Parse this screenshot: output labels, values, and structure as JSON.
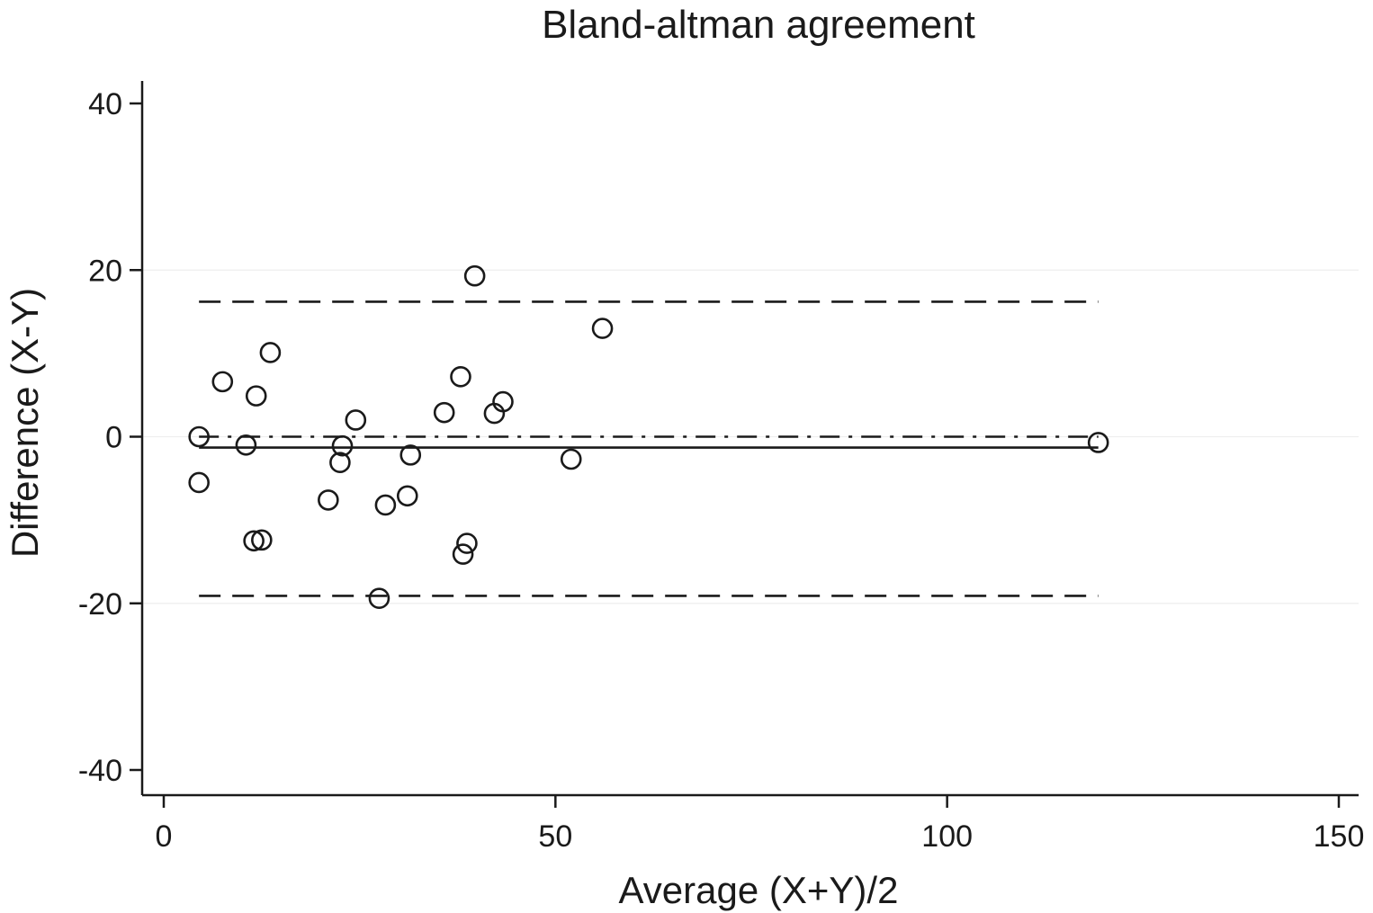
{
  "chart_data": {
    "type": "scatter",
    "title": "Bland-altman agreement",
    "xlabel": "Average (X+Y)/2",
    "ylabel": "Difference (X-Y)",
    "xlim": [
      0,
      150
    ],
    "ylim": [
      -40,
      40
    ],
    "xticks": [
      "0",
      "50",
      "100",
      "150"
    ],
    "yticks": [
      "40",
      "20",
      "0",
      "-20",
      "-40"
    ],
    "grid": true,
    "series": [
      {
        "marker": "hollow-circle",
        "points": [
          {
            "x": 4.5,
            "y": 0.0
          },
          {
            "x": 4.5,
            "y": -5.5
          },
          {
            "x": 7.5,
            "y": 6.6
          },
          {
            "x": 10.5,
            "y": -1.0
          },
          {
            "x": 11.8,
            "y": 4.9
          },
          {
            "x": 11.5,
            "y": -12.5
          },
          {
            "x": 12.5,
            "y": -12.4
          },
          {
            "x": 13.6,
            "y": 10.1
          },
          {
            "x": 21.0,
            "y": -7.6
          },
          {
            "x": 22.5,
            "y": -3.1
          },
          {
            "x": 22.8,
            "y": -1.1
          },
          {
            "x": 24.5,
            "y": 2.0
          },
          {
            "x": 27.5,
            "y": -19.4
          },
          {
            "x": 28.3,
            "y": -8.2
          },
          {
            "x": 31.1,
            "y": -7.1
          },
          {
            "x": 31.5,
            "y": -2.2
          },
          {
            "x": 35.8,
            "y": 2.9
          },
          {
            "x": 37.9,
            "y": 7.2
          },
          {
            "x": 38.2,
            "y": -14.1
          },
          {
            "x": 38.7,
            "y": -12.8
          },
          {
            "x": 39.7,
            "y": 19.3
          },
          {
            "x": 42.2,
            "y": 2.8
          },
          {
            "x": 43.3,
            "y": 4.2
          },
          {
            "x": 52.0,
            "y": -2.7
          },
          {
            "x": 56.0,
            "y": 13.0
          },
          {
            "x": 119.3,
            "y": -0.7
          }
        ]
      }
    ],
    "reference_lines": [
      {
        "kind": "upper-limit",
        "style": "dashed",
        "y": 16.2,
        "x_range": [
          4.5,
          119.3
        ]
      },
      {
        "kind": "mean-difference",
        "style": "solid",
        "y": -1.3,
        "x_range": [
          4.5,
          119.3
        ]
      },
      {
        "kind": "zero",
        "style": "dash-dot",
        "y": 0.0,
        "x_range": [
          4.5,
          119.3
        ]
      },
      {
        "kind": "lower-limit",
        "style": "dashed",
        "y": -19.1,
        "x_range": [
          4.5,
          119.3
        ]
      }
    ]
  }
}
